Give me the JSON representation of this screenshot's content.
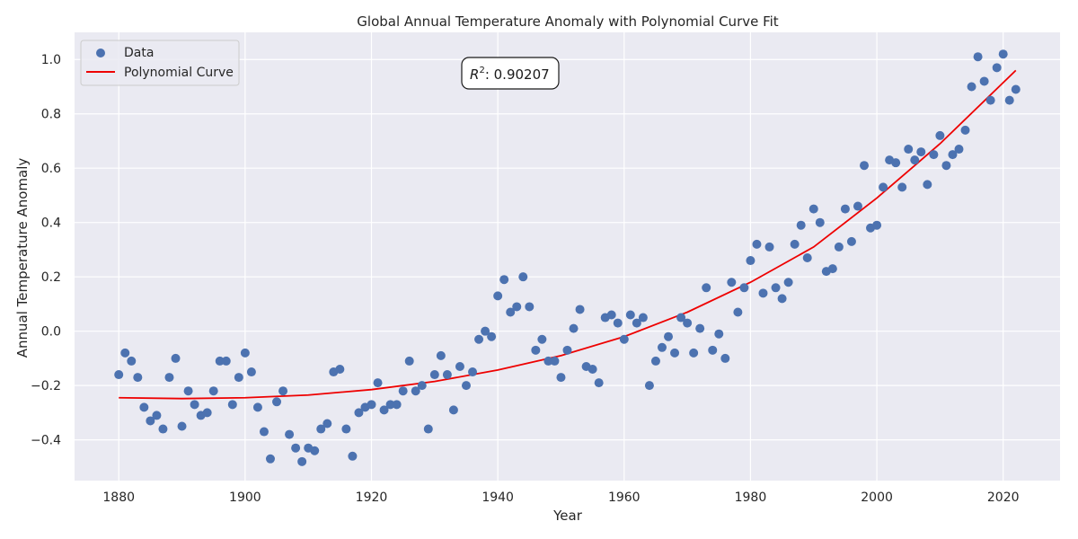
{
  "chart_data": {
    "type": "scatter",
    "title": "Global Annual Temperature Anomaly with Polynomial Curve Fit",
    "xlabel": "Year",
    "ylabel": "Annual Temperature Anomaly",
    "xlim": [
      1873,
      2029
    ],
    "ylim": [
      -0.55,
      1.1
    ],
    "xticks": [
      1880,
      1900,
      1920,
      1940,
      1960,
      1980,
      2000,
      2020
    ],
    "yticks": [
      -0.4,
      -0.2,
      0.0,
      0.2,
      0.4,
      0.6,
      0.8,
      1.0
    ],
    "xtick_labels": [
      "1880",
      "1900",
      "1920",
      "1940",
      "1960",
      "1980",
      "2000",
      "2020"
    ],
    "ytick_labels": [
      "−0.4",
      "−0.2",
      "0.0",
      "0.2",
      "0.4",
      "0.6",
      "0.8",
      "1.0"
    ],
    "grid": true,
    "legend_position": "top-left",
    "annotation": {
      "text": ": 0.90207",
      "symbol": "R",
      "superscript": "2"
    },
    "colors": {
      "data": "#4c72b0",
      "curve": "#ee0000",
      "background": "#eaeaf2",
      "grid": "#ffffff"
    },
    "series": [
      {
        "name": "Data",
        "kind": "scatter",
        "x": [
          1880,
          1881,
          1882,
          1883,
          1884,
          1885,
          1886,
          1887,
          1888,
          1889,
          1890,
          1891,
          1892,
          1893,
          1894,
          1895,
          1896,
          1897,
          1898,
          1899,
          1900,
          1901,
          1902,
          1903,
          1904,
          1905,
          1906,
          1907,
          1908,
          1909,
          1910,
          1911,
          1912,
          1913,
          1914,
          1915,
          1916,
          1917,
          1918,
          1919,
          1920,
          1921,
          1922,
          1923,
          1924,
          1925,
          1926,
          1927,
          1928,
          1929,
          1930,
          1931,
          1932,
          1933,
          1934,
          1935,
          1936,
          1937,
          1938,
          1939,
          1940,
          1941,
          1942,
          1943,
          1944,
          1945,
          1946,
          1947,
          1948,
          1949,
          1950,
          1951,
          1952,
          1953,
          1954,
          1955,
          1956,
          1957,
          1958,
          1959,
          1960,
          1961,
          1962,
          1963,
          1964,
          1965,
          1966,
          1967,
          1968,
          1969,
          1970,
          1971,
          1972,
          1973,
          1974,
          1975,
          1976,
          1977,
          1978,
          1979,
          1980,
          1981,
          1982,
          1983,
          1984,
          1985,
          1986,
          1987,
          1988,
          1989,
          1990,
          1991,
          1992,
          1993,
          1994,
          1995,
          1996,
          1997,
          1998,
          1999,
          2000,
          2001,
          2002,
          2003,
          2004,
          2005,
          2006,
          2007,
          2008,
          2009,
          2010,
          2011,
          2012,
          2013,
          2014,
          2015,
          2016,
          2017,
          2018,
          2019,
          2020,
          2021,
          2022
        ],
        "y": [
          -0.16,
          -0.08,
          -0.11,
          -0.17,
          -0.28,
          -0.33,
          -0.31,
          -0.36,
          -0.17,
          -0.1,
          -0.35,
          -0.22,
          -0.27,
          -0.31,
          -0.3,
          -0.22,
          -0.11,
          -0.11,
          -0.27,
          -0.17,
          -0.08,
          -0.15,
          -0.28,
          -0.37,
          -0.47,
          -0.26,
          -0.22,
          -0.38,
          -0.43,
          -0.48,
          -0.43,
          -0.44,
          -0.36,
          -0.34,
          -0.15,
          -0.14,
          -0.36,
          -0.46,
          -0.3,
          -0.28,
          -0.27,
          -0.19,
          -0.29,
          -0.27,
          -0.27,
          -0.22,
          -0.11,
          -0.22,
          -0.2,
          -0.36,
          -0.16,
          -0.09,
          -0.16,
          -0.29,
          -0.13,
          -0.2,
          -0.15,
          -0.03,
          0.0,
          -0.02,
          0.13,
          0.19,
          0.07,
          0.09,
          0.2,
          0.09,
          -0.07,
          -0.03,
          -0.11,
          -0.11,
          -0.17,
          -0.07,
          0.01,
          0.08,
          -0.13,
          -0.14,
          -0.19,
          0.05,
          0.06,
          0.03,
          -0.03,
          0.06,
          0.03,
          0.05,
          -0.2,
          -0.11,
          -0.06,
          -0.02,
          -0.08,
          0.05,
          0.03,
          -0.08,
          0.01,
          0.16,
          -0.07,
          -0.01,
          -0.1,
          0.18,
          0.07,
          0.16,
          0.26,
          0.32,
          0.14,
          0.31,
          0.16,
          0.12,
          0.18,
          0.32,
          0.39,
          0.27,
          0.45,
          0.4,
          0.22,
          0.23,
          0.31,
          0.45,
          0.33,
          0.46,
          0.61,
          0.38,
          0.39,
          0.53,
          0.63,
          0.62,
          0.53,
          0.67,
          0.63,
          0.66,
          0.54,
          0.65,
          0.72,
          0.61,
          0.65,
          0.67,
          0.74,
          0.9,
          1.01,
          0.92,
          0.85,
          0.97,
          1.02,
          0.85,
          0.89
        ]
      },
      {
        "name": "Polynomial Curve",
        "kind": "line",
        "x": [
          1880,
          1890,
          1900,
          1910,
          1920,
          1930,
          1940,
          1950,
          1960,
          1970,
          1980,
          1990,
          2000,
          2010,
          2022
        ],
        "y": [
          -0.245,
          -0.248,
          -0.245,
          -0.235,
          -0.215,
          -0.185,
          -0.143,
          -0.09,
          -0.02,
          0.07,
          0.18,
          0.31,
          0.49,
          0.69,
          0.96
        ]
      }
    ]
  }
}
